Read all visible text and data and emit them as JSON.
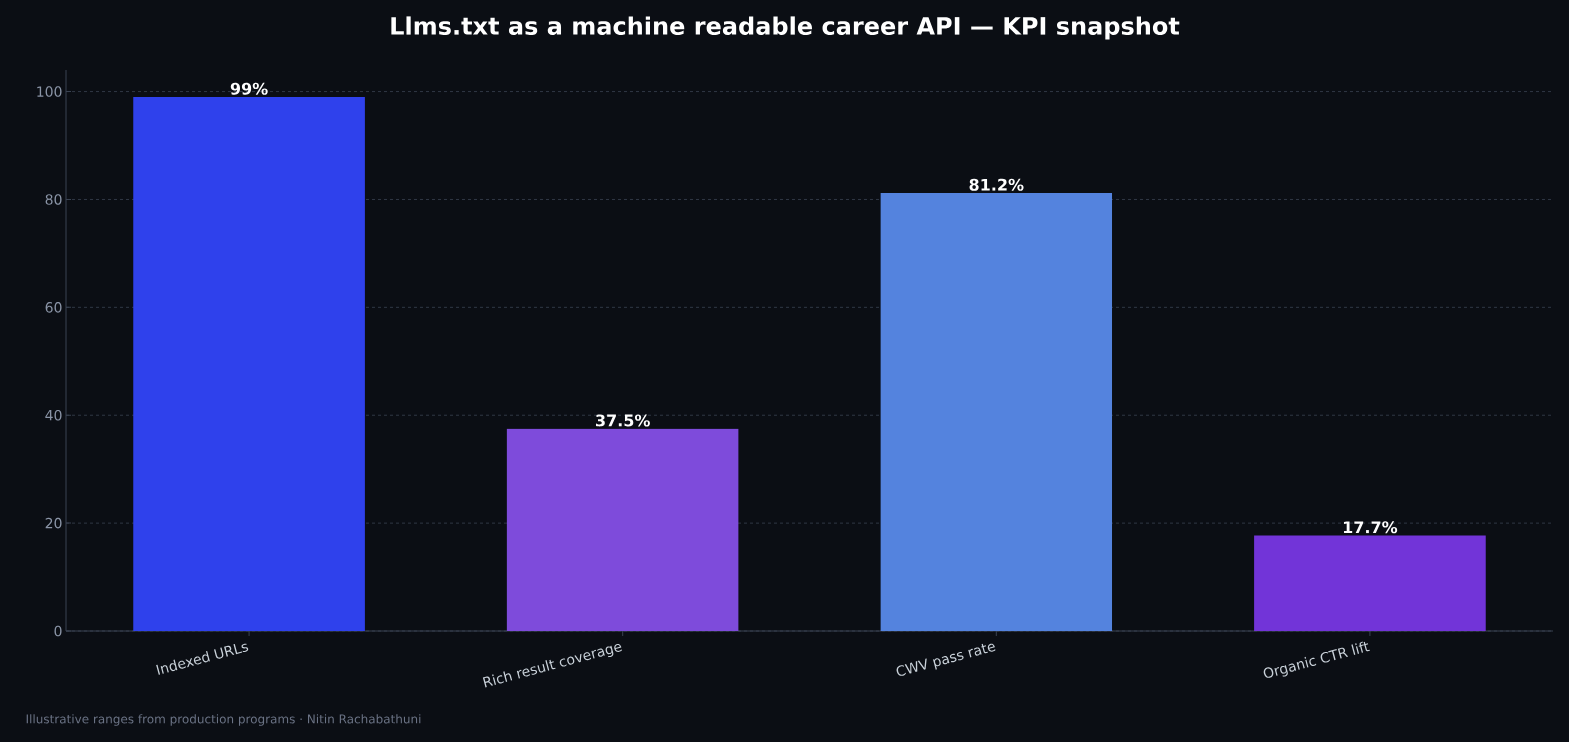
{
  "chart_data": {
    "type": "bar",
    "title": "Llms.txt as a machine readable career API — KPI snapshot",
    "categories": [
      "Indexed URLs",
      "Rich result coverage",
      "CWV pass rate",
      "Organic CTR lift"
    ],
    "values": [
      99,
      37.5,
      81.2,
      17.7
    ],
    "colors": [
      "#2f41ec",
      "#7e4bdb",
      "#5483de",
      "#7234d8"
    ],
    "value_labels": [
      "99%",
      "37.5%",
      "81.2%",
      "17.7%"
    ],
    "ylim": [
      0,
      104
    ],
    "yticks": [
      0,
      20,
      40,
      60,
      80,
      100
    ],
    "grid": "y",
    "annotations": [
      "Illustrative ranges from production programs · Nitin Rachabathuni"
    ]
  }
}
